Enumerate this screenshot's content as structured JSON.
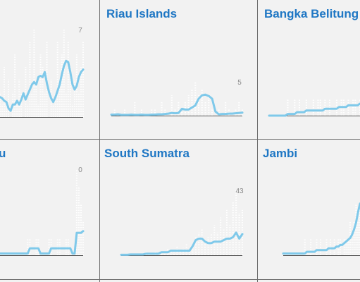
{
  "colors": {
    "line": "#7fc9ea",
    "title": "#1f77c4",
    "spikes": "#ffffff",
    "baseline": "#555555",
    "background": "#f2f2f2"
  },
  "chart_data": [
    {
      "type": "line",
      "title": "",
      "max_label": "7",
      "x": [
        0,
        1,
        2,
        3,
        4,
        5,
        6,
        7,
        8,
        9,
        10,
        11,
        12,
        13,
        14,
        15,
        16,
        17,
        18,
        19,
        20,
        21,
        22,
        23,
        24,
        25,
        26,
        27,
        28,
        29,
        30,
        31,
        32,
        33,
        34,
        35,
        36,
        37,
        38,
        39
      ],
      "series": [
        {
          "name": "",
          "values": [
            1.6,
            1.5,
            1.3,
            1.2,
            0.7,
            0.5,
            1,
            1,
            1.3,
            1,
            1.4,
            1.9,
            1.4,
            1.8,
            2.2,
            2.6,
            2.8,
            2.6,
            3.2,
            3.3,
            3.2,
            3.6,
            2.7,
            2,
            1.5,
            1.2,
            1.6,
            2.1,
            2.6,
            3.4,
            4.1,
            4.5,
            4.4,
            3.6,
            2.6,
            2.2,
            2.5,
            3.2,
            3.6,
            3.8
          ]
        }
      ],
      "daily": [
        2,
        1,
        4,
        1,
        3,
        0,
        2,
        5,
        1,
        3,
        2,
        0,
        4,
        1,
        6,
        2,
        7,
        3,
        1,
        5,
        4,
        2,
        6,
        0,
        3,
        1,
        2,
        6,
        3,
        5,
        7,
        2,
        6,
        4,
        1,
        3,
        5,
        2,
        4,
        6
      ],
      "ylim": [
        0,
        7
      ]
    },
    {
      "type": "line",
      "title": "Riau Islands",
      "max_label": "5",
      "x": [
        0,
        1,
        2,
        3,
        4,
        5,
        6,
        7,
        8,
        9,
        10,
        11,
        12,
        13,
        14,
        15,
        16,
        17,
        18,
        19,
        20,
        21,
        22,
        23,
        24,
        25,
        26,
        27,
        28,
        29,
        30,
        31,
        32,
        33,
        34,
        35,
        36,
        37,
        38,
        39
      ],
      "series": [
        {
          "name": "",
          "values": [
            0.15,
            0.15,
            0.2,
            0.1,
            0.1,
            0.1,
            0.15,
            0.1,
            0.1,
            0.15,
            0.1,
            0.1,
            0.15,
            0.15,
            0.2,
            0.2,
            0.25,
            0.3,
            0.4,
            0.35,
            0.4,
            1.0,
            0.9,
            0.9,
            1.2,
            1.5,
            2.5,
            3.0,
            3.1,
            2.9,
            2.5,
            0.6,
            0.2,
            0.25,
            0.25,
            0.3,
            0.3,
            0.35,
            0.4,
            0.45
          ]
        }
      ],
      "daily": [
        0,
        1,
        0,
        0,
        1,
        0,
        0,
        2,
        0,
        1,
        0,
        0,
        1,
        1,
        0,
        2,
        1,
        0,
        3,
        1,
        2,
        1,
        2,
        3,
        4,
        5,
        3,
        4,
        2,
        3,
        1,
        0,
        1,
        0,
        2,
        1,
        0,
        1,
        2,
        1
      ],
      "ylim": [
        0,
        5
      ]
    },
    {
      "type": "line",
      "title": "Bangka Belitung",
      "max_label": "",
      "x": [
        0,
        1,
        2,
        3,
        4,
        5,
        6,
        7,
        8,
        9,
        10,
        11,
        12,
        13,
        14,
        15,
        16,
        17,
        18,
        19,
        20,
        21,
        22,
        23,
        24,
        25,
        26,
        27,
        28,
        29,
        30,
        31,
        32,
        33,
        34,
        35,
        36,
        37,
        38,
        39
      ],
      "series": [
        {
          "name": "",
          "values": [
            0,
            0,
            0,
            0,
            0,
            0,
            0,
            0,
            0.1,
            0.1,
            0.1,
            0.1,
            0.2,
            0.2,
            0.2,
            0.2,
            0.3,
            0.3,
            0.3,
            0.3,
            0.3,
            0.3,
            0.3,
            0.3,
            0.4,
            0.4,
            0.4,
            0.4,
            0.4,
            0.4,
            0.5,
            0.5,
            0.5,
            0.5,
            0.6,
            0.6,
            0.6,
            0.6,
            0.6,
            0.7
          ]
        }
      ],
      "daily": [
        0,
        0,
        0,
        0,
        0,
        0,
        0,
        0,
        1,
        0,
        0,
        1,
        0,
        1,
        0,
        0,
        1,
        0,
        0,
        1,
        0,
        1,
        1,
        0,
        1,
        0,
        1,
        0,
        0,
        1,
        0,
        1,
        1,
        0,
        1,
        0,
        1,
        1,
        0,
        1
      ],
      "ylim": [
        0,
        5
      ]
    },
    {
      "type": "line",
      "title": "u",
      "max_label": "0",
      "x": [
        0,
        1,
        2,
        3,
        4,
        5,
        6,
        7,
        8,
        9,
        10,
        11,
        12,
        13,
        14,
        15,
        16,
        17,
        18,
        19,
        20,
        21,
        22,
        23,
        24,
        25,
        26,
        27,
        28,
        29,
        30,
        31,
        32,
        33,
        34,
        35,
        36,
        37,
        38,
        39
      ],
      "series": [
        {
          "name": "",
          "values": [
            0.1,
            0.1,
            0.1,
            0.1,
            0.1,
            0.1,
            0.1,
            0.1,
            0.1,
            0.1,
            0.1,
            0.1,
            0.1,
            0.1,
            0.4,
            0.4,
            0.4,
            0.4,
            0.4,
            0.1,
            0.1,
            0.1,
            0.1,
            0.1,
            0.4,
            0.4,
            0.4,
            0.4,
            0.4,
            0.4,
            0.4,
            0.4,
            0.4,
            0.4,
            0.1,
            0.1,
            1.3,
            1.3,
            1.3,
            1.4
          ]
        }
      ],
      "daily": [
        0,
        0,
        0,
        0,
        0,
        0,
        0,
        0,
        0,
        0,
        0,
        0,
        0,
        1,
        1,
        0,
        0,
        1,
        1,
        0,
        0,
        0,
        0,
        1,
        1,
        0,
        0,
        1,
        1,
        0,
        0,
        1,
        1,
        0,
        0,
        0,
        5,
        4,
        3,
        2
      ],
      "ylim": [
        0,
        5
      ]
    },
    {
      "type": "line",
      "title": "South Sumatra",
      "max_label": "43",
      "x": [
        0,
        1,
        2,
        3,
        4,
        5,
        6,
        7,
        8,
        9,
        10,
        11,
        12,
        13,
        14,
        15,
        16,
        17,
        18,
        19,
        20,
        21,
        22,
        23,
        24,
        25,
        26,
        27,
        28,
        29,
        30,
        31,
        32,
        33,
        34,
        35,
        36,
        37,
        38,
        39
      ],
      "series": [
        {
          "name": "",
          "values": [
            0.3,
            0.3,
            0.3,
            0.5,
            0.5,
            0.5,
            0.5,
            0.5,
            1,
            1,
            1,
            1,
            1,
            2,
            2,
            2,
            3,
            3,
            3,
            3,
            3,
            3,
            3,
            6,
            10,
            11,
            11,
            9,
            8,
            8,
            9,
            9,
            9,
            10,
            11,
            11,
            12,
            15,
            11,
            14
          ]
        }
      ],
      "daily": [
        0,
        1,
        0,
        1,
        0,
        1,
        0,
        1,
        2,
        1,
        0,
        2,
        1,
        3,
        2,
        4,
        3,
        2,
        6,
        3,
        5,
        8,
        4,
        6,
        12,
        15,
        18,
        10,
        12,
        14,
        20,
        15,
        25,
        18,
        30,
        20,
        35,
        43,
        28,
        30
      ],
      "ylim": [
        0,
        43
      ]
    },
    {
      "type": "line",
      "title": "Jambi",
      "max_label": "",
      "x": [
        0,
        1,
        2,
        3,
        4,
        5,
        6,
        7,
        8,
        9,
        10,
        11,
        12,
        13,
        14,
        15,
        16,
        17,
        18,
        19,
        20,
        21,
        22,
        23,
        24,
        25,
        26,
        27,
        28,
        29,
        30,
        31,
        32,
        33,
        34,
        35,
        36,
        37,
        38,
        39
      ],
      "series": [
        {
          "name": "",
          "values": [
            0.1,
            0.1,
            0.1,
            0.1,
            0.1,
            0.1,
            0.1,
            0.1,
            0.1,
            0.1,
            0.1,
            0.1,
            0.2,
            0.2,
            0.2,
            0.2,
            0.2,
            0.3,
            0.3,
            0.3,
            0.3,
            0.3,
            0.3,
            0.4,
            0.4,
            0.4,
            0.4,
            0.5,
            0.5,
            0.6,
            0.6,
            0.7,
            0.8,
            0.9,
            1.0,
            1.2,
            1.5,
            1.9,
            2.5,
            3.0
          ]
        }
      ],
      "daily": [
        0,
        0,
        0,
        0,
        0,
        0,
        0,
        0,
        0,
        0,
        0,
        1,
        0,
        0,
        1,
        0,
        0,
        1,
        0,
        1,
        0,
        0,
        1,
        0,
        1,
        0,
        1,
        0,
        1,
        1,
        0,
        1,
        1,
        1,
        2,
        1,
        2,
        3,
        2,
        3
      ],
      "ylim": [
        0,
        5
      ]
    }
  ]
}
